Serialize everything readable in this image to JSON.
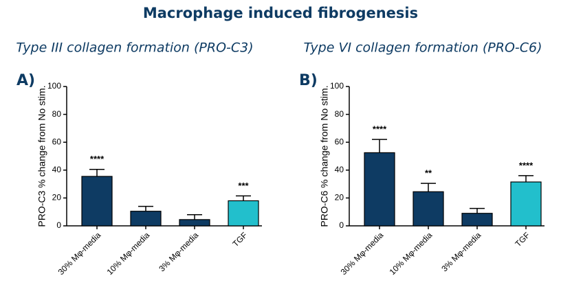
{
  "header": {
    "title": "Macrophage induced fibrogenesis"
  },
  "chart_data": [
    {
      "type": "bar",
      "panel": "A)",
      "title": "Type III collagen formation (PRO-C3)",
      "y_label": "PRO-C3 % change from No stim.",
      "categories": [
        "30% Mφ-media",
        "10% Mφ-media",
        "3% Mφ-media",
        "TGF"
      ],
      "values": [
        35.5,
        10.5,
        4.5,
        18
      ],
      "errors": [
        5,
        3.5,
        3.5,
        3.5
      ],
      "annotations": [
        "****",
        null,
        null,
        "***"
      ],
      "colors": [
        "#0e3b63",
        "#0e3b63",
        "#0e3b63",
        "#22bfcc"
      ],
      "ylim": [
        0,
        100
      ],
      "yticks": [
        0,
        20,
        40,
        60,
        80,
        100
      ]
    },
    {
      "type": "bar",
      "panel": "B)",
      "title": "Type VI collagen formation (PRO-C6)",
      "y_label": "PRO-C6 % change from No stim.",
      "categories": [
        "30% Mφ-media",
        "10% Mφ-media",
        "3% Mφ-media",
        "TGF"
      ],
      "values": [
        52.5,
        24.5,
        9,
        31.5
      ],
      "errors": [
        9.5,
        6,
        3.5,
        4.5
      ],
      "annotations": [
        "****",
        "**",
        null,
        "****"
      ],
      "colors": [
        "#0e3b63",
        "#0e3b63",
        "#0e3b63",
        "#22bfcc"
      ],
      "ylim": [
        0,
        100
      ],
      "yticks": [
        0,
        20,
        40,
        60,
        80,
        100
      ]
    }
  ]
}
